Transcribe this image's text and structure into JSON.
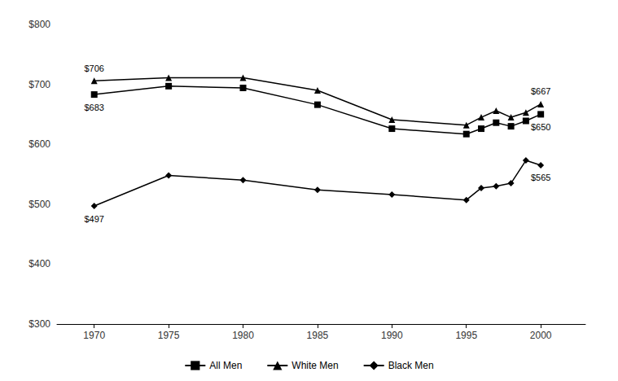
{
  "chart_data": {
    "type": "line",
    "x": [
      1970,
      1975,
      1980,
      1985,
      1990,
      1995,
      1996,
      1997,
      1998,
      1999,
      2000
    ],
    "series": [
      {
        "name": "All Men",
        "color": "#000000",
        "marker": "square",
        "values": [
          683,
          697,
          694,
          666,
          626,
          617,
          626,
          636,
          630,
          639,
          650
        ],
        "value_labels": [
          "$683",
          null,
          null,
          null,
          null,
          null,
          null,
          null,
          null,
          null,
          "$650"
        ]
      },
      {
        "name": "White Men",
        "color": "#000000",
        "marker": "triangle",
        "values": [
          706,
          711,
          711,
          690,
          641,
          632,
          645,
          656,
          645,
          653,
          667
        ],
        "value_labels": [
          "$706",
          null,
          null,
          null,
          null,
          null,
          null,
          null,
          null,
          null,
          "$667"
        ]
      },
      {
        "name": "Black Men",
        "color": "#000000",
        "marker": "diamond",
        "values": [
          497,
          548,
          540,
          524,
          516,
          507,
          527,
          530,
          535,
          573,
          565
        ],
        "value_labels": [
          "$497",
          null,
          null,
          null,
          null,
          null,
          null,
          null,
          null,
          null,
          "$565"
        ]
      }
    ],
    "xlim": [
      1967.5,
      2003
    ],
    "xticks": [
      1970,
      1975,
      1980,
      1985,
      1990,
      1995,
      2000
    ],
    "ylim": [
      300,
      800
    ],
    "yticks": [
      {
        "value": 300,
        "label": "$300"
      },
      {
        "value": 400,
        "label": "$400"
      },
      {
        "value": 500,
        "label": "$500"
      },
      {
        "value": 600,
        "label": "$600"
      },
      {
        "value": 700,
        "label": "$700"
      },
      {
        "value": 800,
        "label": "$800"
      }
    ],
    "grid": false,
    "legend": "bottom"
  }
}
